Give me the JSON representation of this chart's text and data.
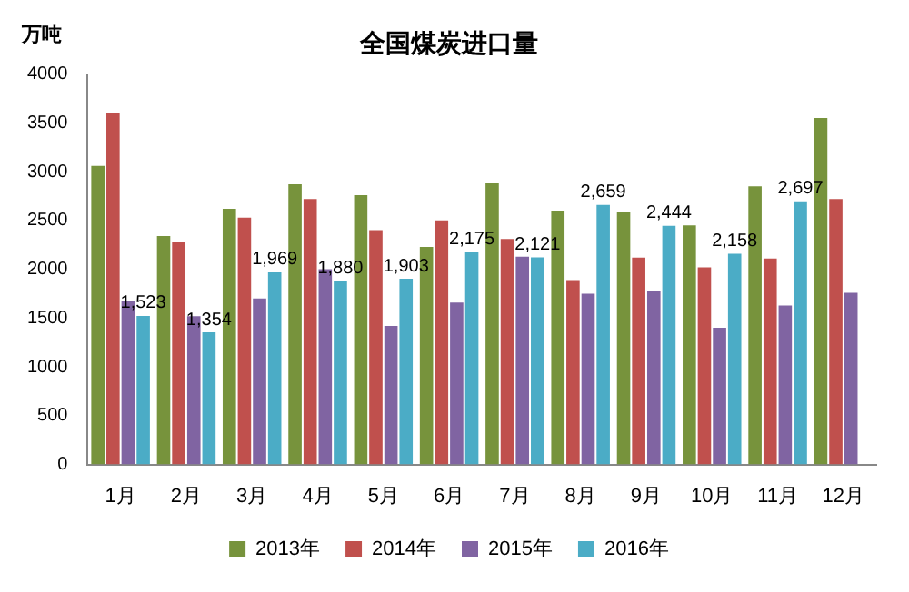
{
  "chart_data": {
    "type": "bar",
    "title": "全国煤炭进口量",
    "ylabel": "万吨",
    "categories": [
      "1月",
      "2月",
      "3月",
      "4月",
      "5月",
      "6月",
      "7月",
      "8月",
      "9月",
      "10月",
      "11月",
      "12月"
    ],
    "series": [
      {
        "name": "2013年",
        "color": "#77933c",
        "values": [
          3060,
          2340,
          2620,
          2870,
          2760,
          2230,
          2880,
          2600,
          2590,
          2450,
          2850,
          3550
        ]
      },
      {
        "name": "2014年",
        "color": "#c0504d",
        "values": [
          3600,
          2280,
          2530,
          2720,
          2400,
          2500,
          2310,
          1890,
          2120,
          2020,
          2110,
          2720
        ]
      },
      {
        "name": "2015年",
        "color": "#8064a2",
        "values": [
          1670,
          1520,
          1700,
          2000,
          1420,
          1660,
          2130,
          1750,
          1780,
          1400,
          1630,
          1760
        ]
      },
      {
        "name": "2016年",
        "color": "#4bacc6",
        "values": [
          1523,
          1354,
          1969,
          1880,
          1903,
          2175,
          2121,
          2659,
          2444,
          2158,
          2697,
          null
        ],
        "value_labels": [
          "1,523",
          "1,354",
          "1,969",
          "1,880",
          "1,903",
          "2,175",
          "2,121",
          "2,659",
          "2,444",
          "2,158",
          "2,697",
          null
        ]
      }
    ],
    "ylim": [
      0,
      4000
    ],
    "yticks": [
      0,
      500,
      1000,
      1500,
      2000,
      2500,
      3000,
      3500,
      4000
    ],
    "grid": false,
    "legend": "bottom"
  }
}
